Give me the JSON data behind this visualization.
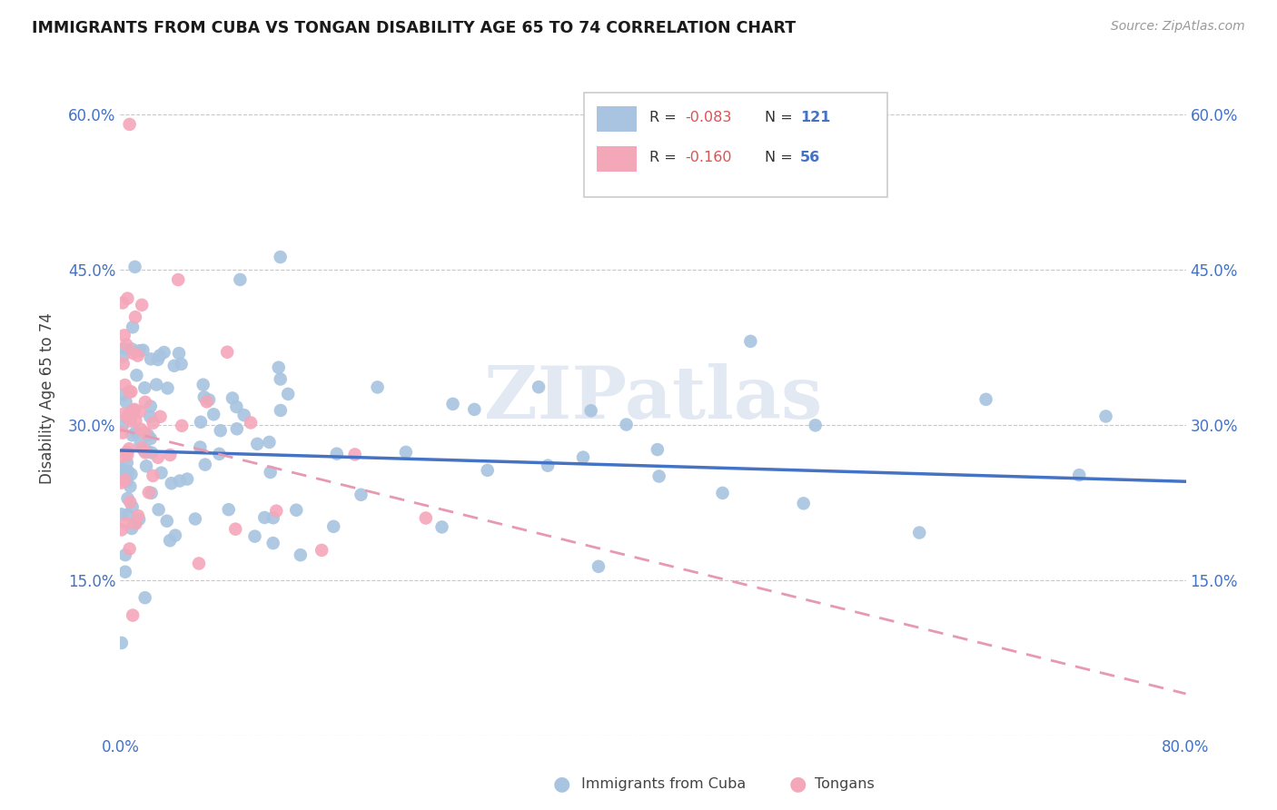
{
  "title": "IMMIGRANTS FROM CUBA VS TONGAN DISABILITY AGE 65 TO 74 CORRELATION CHART",
  "source": "Source: ZipAtlas.com",
  "ylabel": "Disability Age 65 to 74",
  "color_cuba": "#a8c4e0",
  "color_tonga": "#f4a7b9",
  "trendline_cuba_color": "#4472c4",
  "trendline_tonga_color": "#e699b0",
  "watermark": "ZIPatlas",
  "xlim": [
    0.0,
    0.8
  ],
  "ylim": [
    0.0,
    0.65
  ],
  "legend_r_cuba": "R = -0.083",
  "legend_n_cuba": "N = 121",
  "legend_r_tonga": "R = -0.160",
  "legend_n_tonga": "N = 56",
  "cuba_trendline": [
    0.0,
    0.8,
    0.275,
    0.245
  ],
  "tonga_trendline": [
    0.0,
    0.8,
    0.295,
    0.04
  ]
}
